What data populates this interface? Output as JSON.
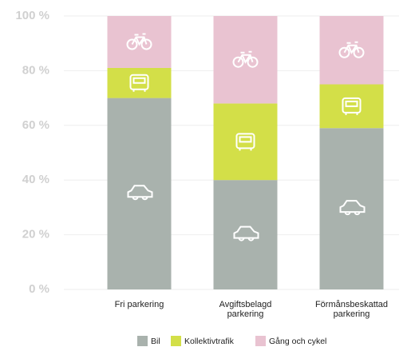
{
  "chart_data": {
    "type": "stacked-bar",
    "categories": [
      "Fri parkering",
      "Avgiftsbelagd parkering",
      "Förmånsbeskattad parkering"
    ],
    "series": [
      {
        "name": "Bil",
        "color": "#a9b2ad",
        "values": [
          70,
          40,
          59
        ]
      },
      {
        "name": "Kollektivtrafik",
        "color": "#d3df48",
        "values": [
          11,
          28,
          16
        ]
      },
      {
        "name": "Gång och cykel",
        "color": "#e9c3d1",
        "values": [
          19,
          32,
          25
        ]
      }
    ],
    "ylim": [
      0,
      100
    ],
    "yticks": [
      {
        "value": 0,
        "label": "0 %"
      },
      {
        "value": 20,
        "label": "20 %"
      },
      {
        "value": 40,
        "label": "40 %"
      },
      {
        "value": 60,
        "label": "60 %"
      },
      {
        "value": 80,
        "label": "80 %"
      },
      {
        "value": 100,
        "label": "100 %"
      }
    ],
    "grid": true
  }
}
